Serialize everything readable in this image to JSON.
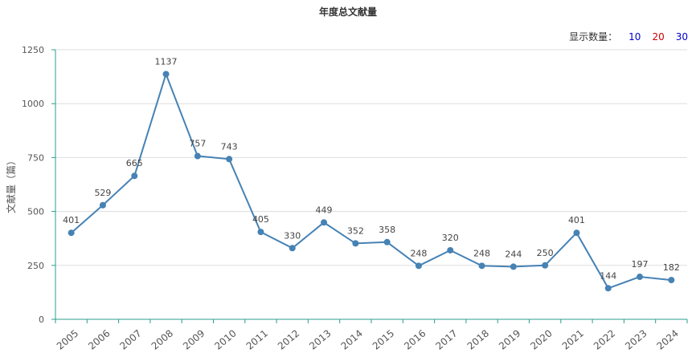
{
  "title": "年度总文献量",
  "count_selector": {
    "label": "显示数量：",
    "options": [
      {
        "value": "10",
        "color": "#0000cc"
      },
      {
        "value": "20",
        "color": "#cc0000"
      },
      {
        "value": "30",
        "color": "#0000cc"
      }
    ]
  },
  "colors": {
    "line": "#4682b4",
    "axis": "#2a9d8f",
    "grid": "#dddddd"
  },
  "chart_data": {
    "type": "line",
    "title": "年度总文献量",
    "xlabel": "",
    "ylabel": "文献量（篇）",
    "ylim": [
      0,
      1250
    ],
    "yticks": [
      0,
      250,
      500,
      750,
      1000,
      1250
    ],
    "grid": true,
    "legend": "none",
    "categories": [
      "2005",
      "2006",
      "2007",
      "2008",
      "2009",
      "2010",
      "2011",
      "2012",
      "2013",
      "2014",
      "2015",
      "2016",
      "2017",
      "2018",
      "2019",
      "2020",
      "2021",
      "2022",
      "2023",
      "2024"
    ],
    "series": [
      {
        "values": [
          401,
          529,
          665,
          1137,
          757,
          743,
          405,
          330,
          449,
          352,
          358,
          248,
          320,
          248,
          244,
          250,
          401,
          144,
          197,
          182
        ]
      }
    ]
  }
}
